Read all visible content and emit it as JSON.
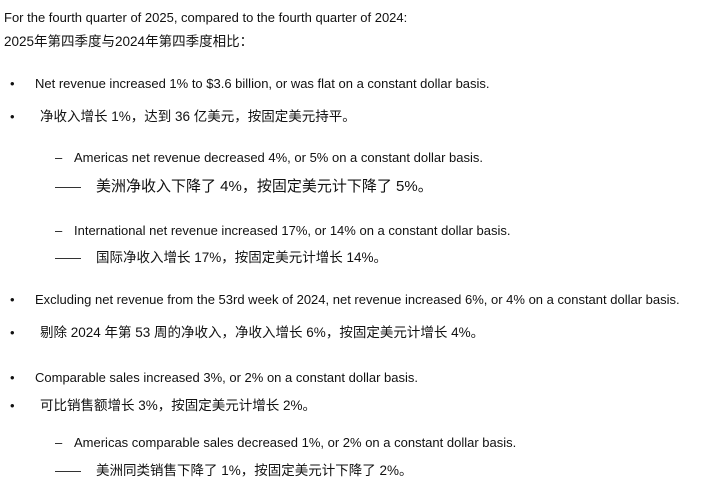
{
  "intro": {
    "en": "For the fourth quarter of 2025, compared to the fourth quarter of 2024:",
    "zh": "2025年第四季度与2024年第四季度相比："
  },
  "markers": {
    "bullet": "•",
    "dash": "–",
    "zh_dash": "——"
  },
  "items": [
    {
      "level": 1,
      "en": "Net revenue increased 1% to $3.6 billion, or was flat on a constant dollar basis.",
      "zh": "净收入增长 1%，达到 36 亿美元，按固定美元持平。"
    },
    {
      "level": 2,
      "en": "Americas net revenue decreased 4%, or 5% on a constant dollar basis.",
      "zh": "美洲净收入下降了 4%，按固定美元计下降了 5%。"
    },
    {
      "level": 2,
      "en": "International net revenue increased 17%, or 14% on a constant dollar basis.",
      "zh": "国际净收入增长 17%，按固定美元计增长 14%。"
    },
    {
      "level": 1,
      "en": "Excluding net revenue from the 53rd week of 2024, net revenue increased 6%, or 4% on a constant dollar basis.",
      "zh": "剔除 2024 年第 53 周的净收入，净收入增长 6%，按固定美元计增长 4%。"
    },
    {
      "level": 1,
      "en": "Comparable sales increased 3%, or 2% on a constant dollar basis.",
      "zh": "可比销售额增长 3%，按固定美元计增长 2%。"
    },
    {
      "level": 2,
      "en": "Americas comparable sales decreased 1%, or 2% on a constant dollar basis.",
      "zh": "美洲同类销售下降了 1%，按固定美元计下降了 2%。"
    }
  ]
}
